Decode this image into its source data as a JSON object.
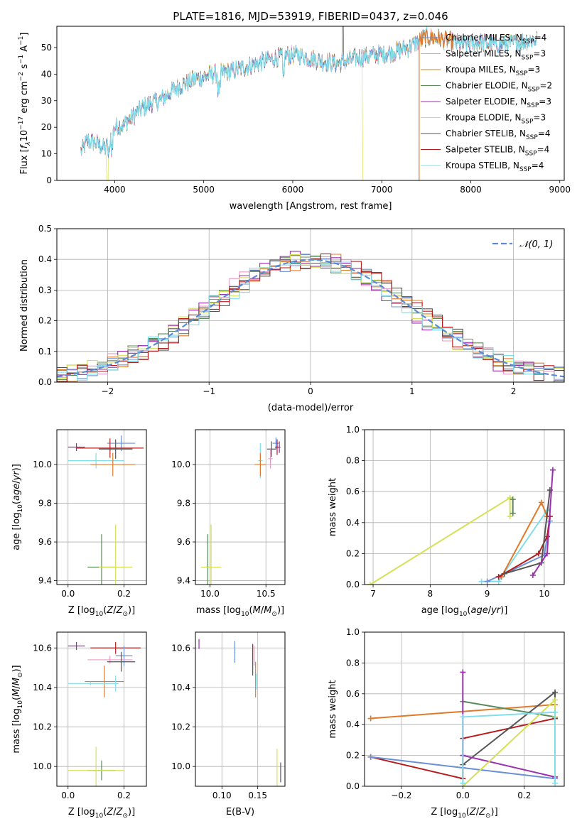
{
  "figure": {
    "title": "PLATE=1816, MJD=53919, FIBERID=0437, z=0.046",
    "colors": {
      "chabrier_miles": "#6a8fd8",
      "salpeter_miles": "#e89bc8",
      "kroupa_miles": "#c8862a",
      "chabrier_elodie": "#5a8a5a",
      "salpeter_elodie": "#9b2fae",
      "kroupa_elodie": "#d4e157",
      "chabrier_stelib": "#555555",
      "salpeter_stelib": "#b71c1c",
      "kroupa_stelib": "#80deea",
      "accent_orange": "#e07a2a",
      "gaussian": "#5b8ad6"
    }
  },
  "chart_data": [
    {
      "id": "spectrum",
      "type": "line",
      "xlabel": "wavelength [Angstrom, rest frame]",
      "ylabel_parts": [
        "Flux [",
        "f",
        "λ",
        "10",
        "−17",
        " erg cm",
        "−2",
        " s",
        "−1",
        " A",
        "−1",
        "]"
      ],
      "xlim": [
        3350,
        9050
      ],
      "ylim": [
        0,
        58
      ],
      "xticks": [
        4000,
        5000,
        6000,
        7000,
        8000,
        9000
      ],
      "yticks": [
        0,
        10,
        20,
        30,
        40,
        50
      ],
      "grid": false,
      "legend_position": "top-right",
      "continuum": {
        "x": [
          3620,
          3700,
          3800,
          3900,
          3950,
          4000,
          4100,
          4200,
          4300,
          4400,
          4500,
          4700,
          4900,
          5100,
          5300,
          5500,
          5700,
          5900,
          6100,
          6300,
          6500,
          6700,
          6900,
          7100,
          7300,
          7500,
          7700,
          7900,
          8100,
          8300,
          8500,
          8750
        ],
        "y": [
          11,
          15,
          14,
          12,
          16,
          20,
          21,
          24,
          27,
          29,
          30,
          35,
          38,
          40,
          41,
          43,
          45,
          47,
          47,
          45,
          44,
          46,
          47,
          48,
          50,
          54,
          53,
          51,
          52,
          51,
          52,
          53
        ]
      },
      "series": [
        {
          "name": "Chabrier MILES",
          "nssp": "4",
          "color_key": "chabrier_miles"
        },
        {
          "name": "Salpeter MILES",
          "nssp": "3",
          "color_key": "salpeter_miles"
        },
        {
          "name": "Kroupa MILES",
          "nssp": "3",
          "color_key": "kroupa_miles"
        },
        {
          "name": "Chabrier ELODIE",
          "nssp": "2",
          "color_key": "chabrier_elodie"
        },
        {
          "name": "Salpeter ELODIE",
          "nssp": "3",
          "color_key": "salpeter_elodie"
        },
        {
          "name": "Kroupa ELODIE",
          "nssp": "3",
          "color_key": "kroupa_elodie"
        },
        {
          "name": "Chabrier STELIB",
          "nssp": "4",
          "color_key": "chabrier_stelib"
        },
        {
          "name": "Salpeter STELIB",
          "nssp": "4",
          "color_key": "salpeter_stelib"
        },
        {
          "name": "Kroupa STELIB",
          "nssp": "4",
          "color_key": "kroupa_stelib"
        }
      ],
      "features": {
        "kroupa_elodie_drop_x": [
          3920,
          6790
        ],
        "orange_drop_x": 7420,
        "spike_x": 6565
      }
    },
    {
      "id": "residuals",
      "type": "line",
      "xlabel": "(data-model)/error",
      "ylabel": "Normed distribution",
      "xlim": [
        -2.5,
        2.5
      ],
      "ylim": [
        0,
        0.5
      ],
      "xticks": [
        -2,
        -1,
        0,
        1,
        2
      ],
      "yticks": [
        0.0,
        0.1,
        0.2,
        0.3,
        0.4,
        0.5
      ],
      "grid": true,
      "legend_position": "top-right",
      "legend_label": "𝒩(0, 1)",
      "bin_width": 0.1
    },
    {
      "id": "age_vs_z",
      "type": "scatter",
      "xlabel": "Z [log10(Z/Z⊙)]",
      "ylabel": "age  [log10(age/yr)]",
      "xlim": [
        -0.04,
        0.28
      ],
      "ylim": [
        9.38,
        10.18
      ],
      "xticks": [
        0.0,
        0.2
      ],
      "yticks": [
        9.4,
        9.6,
        9.8,
        10.0
      ],
      "grid": true,
      "points": [
        {
          "color_key": "salpeter_elodie",
          "x": 0.03,
          "y": 10.09,
          "xerr": 0.03,
          "yerr": 0.02
        },
        {
          "color_key": "chabrier_miles",
          "x": 0.19,
          "y": 10.11,
          "xerr": 0.05,
          "yerr": 0.04
        },
        {
          "color_key": "salpeter_stelib",
          "x": 0.15,
          "y": 10.085,
          "xerr": 0.12,
          "yerr": 0.05
        },
        {
          "color_key": "chabrier_stelib",
          "x": 0.17,
          "y": 10.08,
          "xerr": 0.06,
          "yerr": 0.05
        },
        {
          "color_key": "kroupa_stelib",
          "x": 0.1,
          "y": 10.02,
          "xerr": 0.1,
          "yerr": 0.04
        },
        {
          "color_key": "accent_orange",
          "x": 0.16,
          "y": 10.0,
          "xerr": 0.08,
          "yerr": 0.06
        },
        {
          "color_key": "chabrier_elodie",
          "x": 0.12,
          "y": 9.47,
          "xerr": 0.05,
          "yerr": 0.17
        },
        {
          "color_key": "kroupa_elodie",
          "x": 0.17,
          "y": 9.47,
          "xerr": 0.06,
          "yerr": 0.22
        }
      ]
    },
    {
      "id": "age_vs_mass",
      "type": "scatter",
      "xlabel": "mass [log10(M/M⊙)]",
      "ylabel": "",
      "xlim": [
        9.87,
        10.67
      ],
      "ylim": [
        9.38,
        10.18
      ],
      "xticks": [
        10.0,
        10.5
      ],
      "yticks": [
        9.4,
        9.6,
        9.8,
        10.0
      ],
      "grid": true,
      "points": [
        {
          "color_key": "salpeter_elodie",
          "x": 10.62,
          "y": 10.09,
          "xerr": 0.01,
          "yerr": 0.03
        },
        {
          "color_key": "chabrier_miles",
          "x": 10.59,
          "y": 10.11,
          "xerr": 0.03,
          "yerr": 0.03
        },
        {
          "color_key": "salpeter_stelib",
          "x": 10.6,
          "y": 10.09,
          "xerr": 0.02,
          "yerr": 0.04
        },
        {
          "color_key": "chabrier_stelib",
          "x": 10.55,
          "y": 10.08,
          "xerr": 0.04,
          "yerr": 0.04
        },
        {
          "color_key": "kroupa_stelib",
          "x": 10.45,
          "y": 10.02,
          "xerr": 0.02,
          "yerr": 0.09
        },
        {
          "color_key": "salpeter_miles",
          "x": 10.54,
          "y": 10.03,
          "xerr": 0.02,
          "yerr": 0.05
        },
        {
          "color_key": "accent_orange",
          "x": 10.45,
          "y": 10.0,
          "xerr": 0.05,
          "yerr": 0.06
        },
        {
          "color_key": "chabrier_elodie",
          "x": 9.98,
          "y": 9.47,
          "xerr": 0.01,
          "yerr": 0.17
        },
        {
          "color_key": "kroupa_elodie",
          "x": 10.01,
          "y": 9.47,
          "xerr": 0.09,
          "yerr": 0.22
        }
      ]
    },
    {
      "id": "massweight_vs_age",
      "type": "line",
      "xlabel": "age  [log10(age/yr)]",
      "ylabel": "mass weight",
      "xlim": [
        6.85,
        10.35
      ],
      "ylim": [
        0,
        1
      ],
      "xticks": [
        7,
        8,
        9,
        10
      ],
      "yticks": [
        0.0,
        0.2,
        0.4,
        0.6,
        0.8,
        1.0
      ],
      "grid": true,
      "series": [
        {
          "color_key": "kroupa_elodie",
          "points": [
            [
              6.95,
              0.0
            ],
            [
              9.4,
              0.56
            ],
            [
              9.4,
              0.44
            ]
          ]
        },
        {
          "color_key": "kroupa_stelib",
          "points": [
            [
              8.9,
              0.02
            ],
            [
              9.2,
              0.02
            ],
            [
              9.25,
              0.05
            ],
            [
              10.05,
              0.48
            ]
          ]
        },
        {
          "color_key": "chabrier_miles",
          "points": [
            [
              9.0,
              0.02
            ],
            [
              9.3,
              0.07
            ],
            [
              10.0,
              0.19
            ],
            [
              10.1,
              0.41
            ]
          ]
        },
        {
          "color_key": "accent_orange",
          "points": [
            [
              9.25,
              0.05
            ],
            [
              9.95,
              0.53
            ],
            [
              10.05,
              0.44
            ]
          ]
        },
        {
          "color_key": "salpeter_stelib",
          "points": [
            [
              9.2,
              0.05
            ],
            [
              9.9,
              0.2
            ],
            [
              10.05,
              0.31
            ],
            [
              10.1,
              0.44
            ]
          ]
        },
        {
          "color_key": "chabrier_stelib",
          "points": [
            [
              9.3,
              0.07
            ],
            [
              9.95,
              0.14
            ],
            [
              10.1,
              0.61
            ]
          ]
        },
        {
          "color_key": "salpeter_elodie",
          "points": [
            [
              9.8,
              0.06
            ],
            [
              10.05,
              0.2
            ],
            [
              10.15,
              0.74
            ]
          ]
        },
        {
          "color_key": "chabrier_elodie",
          "points": [
            [
              9.45,
              0.46
            ],
            [
              9.45,
              0.55
            ]
          ]
        }
      ]
    },
    {
      "id": "mass_vs_z",
      "type": "scatter",
      "xlabel": "Z [log10(Z/Z⊙)]",
      "ylabel": "mass [log10(M/M⊙)]",
      "xlim": [
        -0.04,
        0.28
      ],
      "ylim": [
        9.9,
        10.68
      ],
      "xticks": [
        0.0,
        0.2
      ],
      "yticks": [
        10.0,
        10.2,
        10.4,
        10.6
      ],
      "grid": true,
      "points": [
        {
          "color_key": "salpeter_elodie",
          "x": 0.03,
          "y": 10.61,
          "xerr": 0.03,
          "yerr": 0.02
        },
        {
          "color_key": "salpeter_stelib",
          "x": 0.17,
          "y": 10.6,
          "xerr": 0.09,
          "yerr": 0.03
        },
        {
          "color_key": "chabrier_miles",
          "x": 0.2,
          "y": 10.56,
          "xerr": 0.03,
          "yerr": 0.05
        },
        {
          "color_key": "salpeter_miles",
          "x": 0.15,
          "y": 10.54,
          "xerr": 0.08,
          "yerr": 0.02
        },
        {
          "color_key": "chabrier_stelib",
          "x": 0.19,
          "y": 10.53,
          "xerr": 0.05,
          "yerr": 0.05
        },
        {
          "color_key": "accent_orange",
          "x": 0.13,
          "y": 10.43,
          "xerr": 0.07,
          "yerr": 0.08
        },
        {
          "color_key": "kroupa_stelib",
          "x": 0.08,
          "y": 10.42,
          "xerr": 0.08,
          "yerr": 0.01
        },
        {
          "color_key": "kroupa_stelib",
          "x": 0.17,
          "y": 10.42,
          "xerr": 0.01,
          "yerr": 0.04
        },
        {
          "color_key": "chabrier_elodie",
          "x": 0.12,
          "y": 9.98,
          "xerr": 0.05,
          "yerr": 0.05
        },
        {
          "color_key": "kroupa_elodie",
          "x": 0.1,
          "y": 9.98,
          "xerr": 0.1,
          "yerr": 0.12
        }
      ]
    },
    {
      "id": "mass_vs_ebv",
      "type": "scatter",
      "xlabel": "E(B-V)",
      "ylabel": "",
      "xlim": [
        0.063,
        0.188
      ],
      "ylim": [
        9.9,
        10.68
      ],
      "xticks": [
        0.1,
        0.15
      ],
      "yticks": [
        10.0,
        10.2,
        10.4,
        10.6
      ],
      "grid": true,
      "points": [
        {
          "color_key": "salpeter_elodie",
          "x": 0.068,
          "y": 10.62,
          "xerr": 0.0,
          "yerr": 0.025
        },
        {
          "color_key": "chabrier_miles",
          "x": 0.118,
          "y": 10.58,
          "xerr": 0.0,
          "yerr": 0.055
        },
        {
          "color_key": "salpeter_stelib",
          "x": 0.143,
          "y": 10.58,
          "xerr": 0.0,
          "yerr": 0.04
        },
        {
          "color_key": "salpeter_miles",
          "x": 0.145,
          "y": 10.56,
          "xerr": 0.0,
          "yerr": 0.05
        },
        {
          "color_key": "chabrier_stelib",
          "x": 0.143,
          "y": 10.5,
          "xerr": 0.0,
          "yerr": 0.04
        },
        {
          "color_key": "accent_orange",
          "x": 0.147,
          "y": 10.44,
          "xerr": 0.0,
          "yerr": 0.09
        },
        {
          "color_key": "kroupa_stelib",
          "x": 0.148,
          "y": 10.43,
          "xerr": 0.0,
          "yerr": 0.04
        },
        {
          "color_key": "kroupa_elodie",
          "x": 0.177,
          "y": 9.97,
          "xerr": 0.0,
          "yerr": 0.12
        },
        {
          "color_key": "chabrier_stelib",
          "x": 0.182,
          "y": 9.97,
          "xerr": 0.0,
          "yerr": 0.05
        }
      ]
    },
    {
      "id": "massweight_vs_z",
      "type": "line",
      "xlabel": "Z [log10(Z/Z⊙)]",
      "ylabel": "mass weight",
      "xlim": [
        -0.32,
        0.33
      ],
      "ylim": [
        0,
        1
      ],
      "xticks": [
        -0.2,
        0.0,
        0.2
      ],
      "yticks": [
        0.0,
        0.2,
        0.4,
        0.6,
        0.8,
        1.0
      ],
      "grid": true,
      "series": [
        {
          "color_key": "accent_orange",
          "points": [
            [
              -0.3,
              0.44
            ],
            [
              0.3,
              0.53
            ],
            [
              0.3,
              0.44
            ]
          ]
        },
        {
          "color_key": "salpeter_stelib",
          "points": [
            [
              -0.3,
              0.19
            ],
            [
              0.0,
              0.05
            ],
            [
              0.0,
              0.31
            ],
            [
              0.3,
              0.44
            ]
          ]
        },
        {
          "color_key": "chabrier_miles",
          "points": [
            [
              -0.3,
              0.19
            ],
            [
              0.0,
              0.12
            ],
            [
              0.3,
              0.05
            ]
          ]
        },
        {
          "color_key": "chabrier_elodie",
          "points": [
            [
              0.0,
              0.55
            ],
            [
              0.3,
              0.45
            ]
          ]
        },
        {
          "color_key": "chabrier_stelib",
          "points": [
            [
              0.0,
              0.14
            ],
            [
              0.3,
              0.61
            ],
            [
              0.3,
              0.44
            ]
          ]
        },
        {
          "color_key": "salpeter_elodie",
          "points": [
            [
              0.0,
              0.74
            ],
            [
              0.0,
              0.2
            ],
            [
              0.3,
              0.06
            ]
          ]
        },
        {
          "color_key": "kroupa_elodie",
          "points": [
            [
              0.0,
              0.0
            ],
            [
              0.3,
              0.56
            ],
            [
              0.3,
              0.45
            ]
          ]
        },
        {
          "color_key": "kroupa_stelib",
          "points": [
            [
              0.0,
              0.02
            ],
            [
              0.0,
              0.45
            ],
            [
              0.3,
              0.48
            ],
            [
              0.3,
              0.02
            ]
          ]
        }
      ]
    }
  ]
}
